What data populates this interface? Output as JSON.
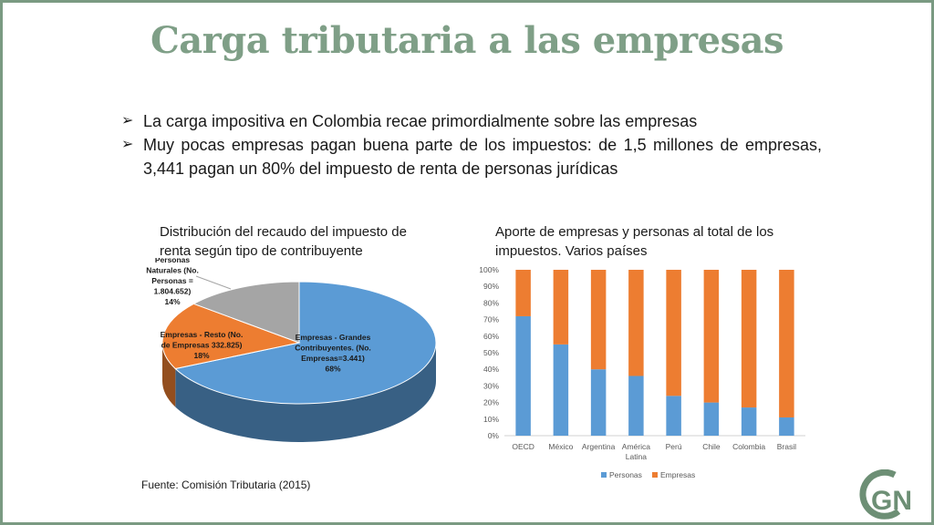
{
  "slide": {
    "title": "Carga tributaria a las empresas",
    "bullets": [
      "La carga impositiva en Colombia recae primordialmente sobre las empresas",
      "Muy pocas empresas pagan buena parte de los impuestos: de 1,5 millones de empresas, 3,441 pagan un 80% del impuesto de renta de personas jurídicas"
    ],
    "source": "Fuente: Comisión Tributaria (2015)",
    "logo_text": "GN"
  },
  "chart_data": [
    {
      "type": "pie",
      "title": "Distribución del recaudo del impuesto de renta según tipo de contribuyente",
      "slices": [
        {
          "label_lines": [
            "Empresas - Grandes",
            "Contribuyentes. (No.",
            "Empresas=3.441)",
            "68%"
          ],
          "value": 68,
          "color": "#5b9bd5"
        },
        {
          "label_lines": [
            "Empresas - Resto (No.",
            "de Empresas 332.825)",
            "18%"
          ],
          "value": 18,
          "color": "#ed7d31"
        },
        {
          "label_lines": [
            "Personas",
            "Naturales (No.",
            "Personas =",
            "1.804.652)",
            "14%"
          ],
          "value": 14,
          "color": "#a5a5a5"
        }
      ]
    },
    {
      "type": "bar",
      "stacked": true,
      "title": "Aporte de empresas y personas al total de los impuestos. Varios países",
      "categories": [
        "OECD",
        "México",
        "Argentina",
        "América Latina",
        "Perú",
        "Chile",
        "Colombia",
        "Brasil"
      ],
      "category_lines": [
        [
          "OECD"
        ],
        [
          "México"
        ],
        [
          "Argentina"
        ],
        [
          "América",
          "Latina"
        ],
        [
          "Perú"
        ],
        [
          "Chile"
        ],
        [
          "Colombia"
        ],
        [
          "Brasil"
        ]
      ],
      "series": [
        {
          "name": "Personas",
          "color": "#5b9bd5",
          "values": [
            72,
            55,
            40,
            36,
            24,
            20,
            17,
            11
          ]
        },
        {
          "name": "Empresas",
          "color": "#ed7d31",
          "values": [
            28,
            45,
            60,
            64,
            76,
            80,
            83,
            89
          ]
        }
      ],
      "ylim": [
        0,
        100
      ],
      "yticks": [
        "0%",
        "10%",
        "20%",
        "30%",
        "40%",
        "50%",
        "60%",
        "70%",
        "80%",
        "90%",
        "100%"
      ],
      "legend": "bottom",
      "grid": false
    }
  ]
}
